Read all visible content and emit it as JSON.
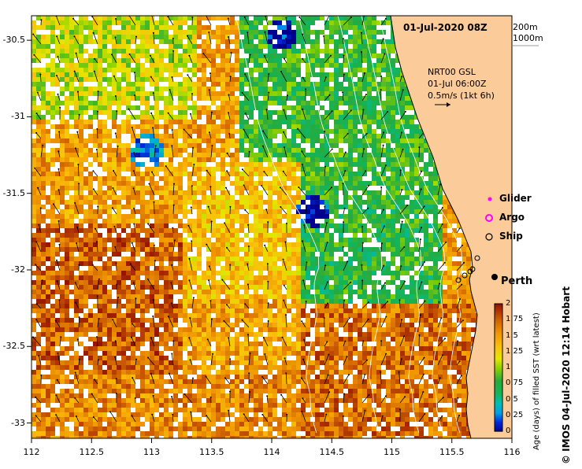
{
  "header": {
    "datetime": "01-Jul-2020 08Z",
    "isobath_1": "200m",
    "isobath_2": "1000m"
  },
  "velocity": {
    "product": "NRT00 GSL",
    "time": "01-Jul 06:00Z",
    "scale": "0.5m/s (1kt 6h)"
  },
  "legend": {
    "glider": "Glider",
    "argo": "Argo",
    "ship": "Ship"
  },
  "city": "Perth",
  "credit": "© IMOS 04-Jul-2020 12:14 Hobart",
  "colorbar": {
    "title": "Age (days) of filled SST (wrt latest)",
    "ticks": [
      "2",
      "1.75",
      "1.5",
      "1.25",
      "1",
      "0.75",
      "0.5",
      "0.25",
      "0"
    ]
  },
  "axes": {
    "x_ticks": [
      "112",
      "112.5",
      "113",
      "113.5",
      "114",
      "114.5",
      "115",
      "115.5",
      "116"
    ],
    "y_ticks": [
      "-30.5",
      "-31",
      "-31.5",
      "-32",
      "-32.5",
      "-33"
    ]
  },
  "colors": {
    "land": "#fbcb9a",
    "no_data": "#ffffff"
  }
}
